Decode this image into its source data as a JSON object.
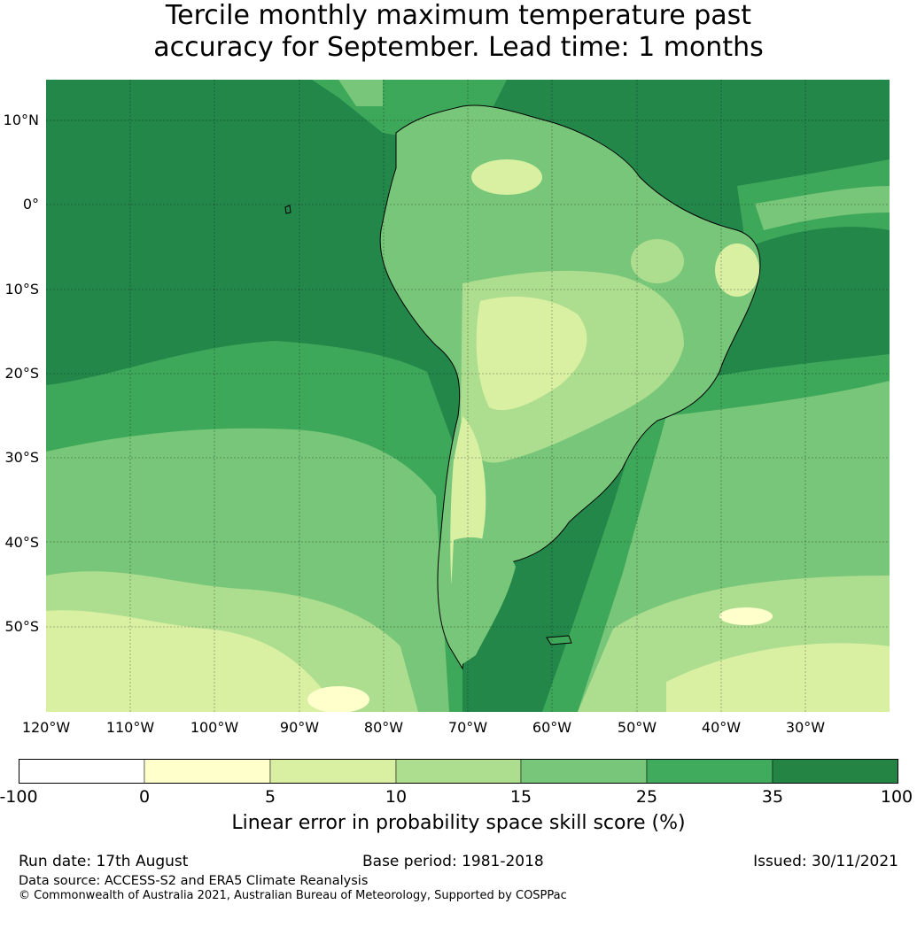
{
  "title": {
    "line1": "Tercile monthly maximum temperature past",
    "line2": "accuracy for September. Lead time: 1 months"
  },
  "map": {
    "lat_labels": [
      "10°N",
      "0°",
      "10°S",
      "20°S",
      "30°S",
      "40°S",
      "50°S"
    ],
    "lon_labels": [
      "120°W",
      "110°W",
      "100°W",
      "90°W",
      "80°W",
      "70°W",
      "60°W",
      "50°W",
      "40°W",
      "30°W"
    ],
    "colors": {
      "ocean_high": "#23874a",
      "ocean_mid": "#3ea85a",
      "land_mid": "#78c679",
      "land_low": "#addd8e",
      "land_lower": "#d9f0a3",
      "lowest": "#ffffcc"
    }
  },
  "colorbar": {
    "ticks": [
      "-100",
      "0",
      "5",
      "10",
      "15",
      "25",
      "35",
      "100"
    ],
    "colors": [
      "#ffffff",
      "#ffffcc",
      "#d9f0a3",
      "#addd8e",
      "#78c679",
      "#41ab5d",
      "#238443"
    ],
    "label": "Linear error in probability space skill score (%)"
  },
  "footer": {
    "run_date": "Run date: 17th August",
    "base_period": "Base period: 1981-2018",
    "issued": "Issued: 30/11/2021",
    "data_source": "Data source: ACCESS-S2 and ERA5 Climate Reanalysis",
    "copyright": "© Commonwealth of Australia 2021, Australian Bureau of Meteorology, Supported by COSPPac"
  }
}
